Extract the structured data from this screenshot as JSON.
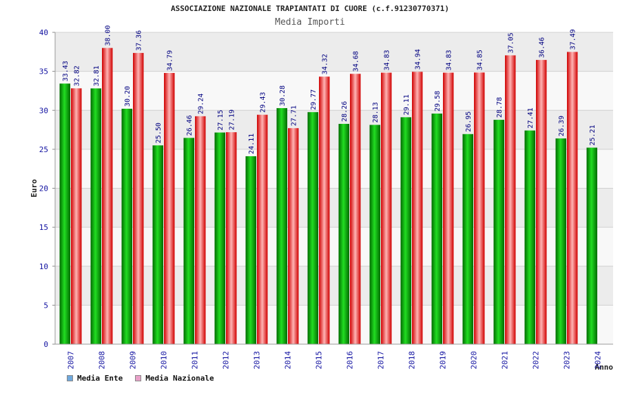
{
  "header": {
    "title": "ASSOCIAZIONE NAZIONALE TRAPIANTATI DI CUORE (c.f.91230770371)",
    "subtitle": "Media Importi"
  },
  "legend": {
    "items": [
      {
        "label": "Media Ente",
        "color": "#6fa8dc"
      },
      {
        "label": "Media Nazionale",
        "color": "#e8a0c8"
      }
    ]
  },
  "chart_data": {
    "type": "bar",
    "title": "Media Importi",
    "xlabel": "Anno",
    "ylabel": "Euro",
    "ylim": [
      0,
      40
    ],
    "yticks": [
      0,
      5,
      10,
      15,
      20,
      25,
      30,
      35,
      40
    ],
    "categories": [
      "2007",
      "2008",
      "2009",
      "2010",
      "2011",
      "2012",
      "2013",
      "2014",
      "2015",
      "2016",
      "2017",
      "2018",
      "2019",
      "2020",
      "2021",
      "2022",
      "2023",
      "2024"
    ],
    "series": [
      {
        "name": "Media Ente",
        "color": "#00a000",
        "values": [
          33.43,
          32.81,
          30.2,
          25.5,
          26.46,
          27.15,
          24.11,
          30.28,
          29.77,
          28.26,
          28.13,
          29.11,
          29.58,
          26.95,
          28.78,
          27.41,
          26.39,
          25.21
        ],
        "labels": [
          "33.43",
          "32.81",
          "30.20",
          "25.50",
          "26.46",
          "27.15",
          "24.11",
          "30.28",
          "29.77",
          "28.26",
          "28.13",
          "29.11",
          "29.58",
          "26.95",
          "28.78",
          "27.41",
          "26.39",
          "25.21"
        ]
      },
      {
        "name": "Media Nazionale",
        "color": "#e00000",
        "values": [
          32.82,
          38.0,
          37.36,
          34.79,
          29.24,
          27.19,
          29.43,
          27.71,
          34.32,
          34.68,
          34.83,
          34.94,
          34.83,
          34.85,
          37.05,
          36.46,
          37.49,
          null
        ],
        "labels": [
          "32.82",
          "38.00",
          "37.36",
          "34.79",
          "29.24",
          "27.19",
          "29.43",
          "27.71",
          "34.32",
          "34.68",
          "34.83",
          "34.94",
          "34.83",
          "34.85",
          "37.05",
          "36.46",
          "37.49",
          null
        ]
      }
    ],
    "grid": true
  }
}
